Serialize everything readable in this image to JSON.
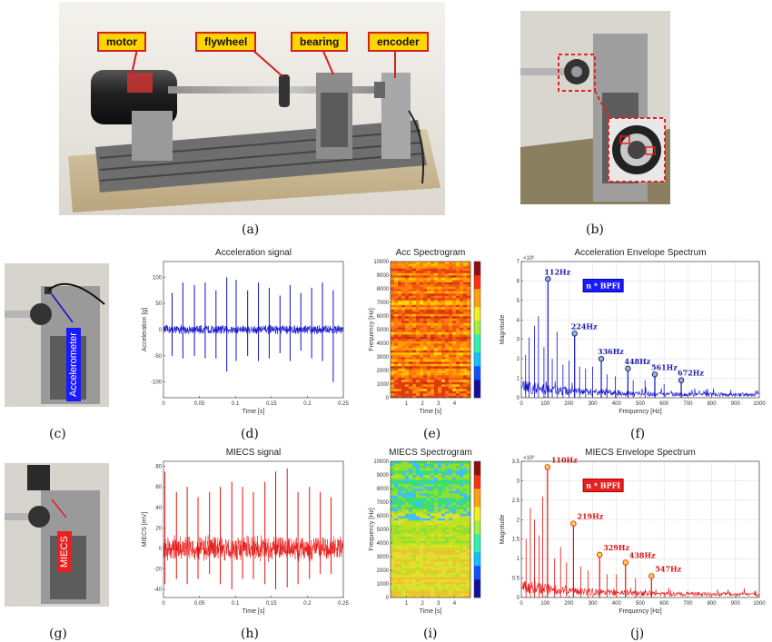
{
  "captions": {
    "a": "(a)",
    "b": "(b)",
    "c": "(c)",
    "d": "(d)",
    "e": "(e)",
    "f": "(f)",
    "g": "(g)",
    "h": "(h)",
    "i": "(i)",
    "j": "(j)"
  },
  "callouts": {
    "motor": "motor",
    "flywheel": "flywheel",
    "bearing": "bearing",
    "encoder": "encoder"
  },
  "sensors": {
    "accelerometer": "Accelerometer",
    "miecs": "MIECS"
  },
  "colors": {
    "acc": "#1010d0",
    "miecs": "#e81010",
    "callout_bg": "#ffd500",
    "callout_border": "#d32020"
  },
  "chart_data": [
    {
      "id": "d",
      "type": "line",
      "title": "Acceleration signal",
      "xlabel": "Time [s]",
      "ylabel": "Acceleration [g]",
      "xlim": [
        0,
        0.25
      ],
      "ylim": [
        -130,
        130
      ],
      "xticks": [
        0,
        0.05,
        0.1,
        0.15,
        0.2,
        0.25
      ],
      "xticklabels": [
        "0",
        "0.05",
        "0.1",
        "0.15",
        "0.2",
        "0.25"
      ],
      "yticks": [
        -100,
        -50,
        0,
        50,
        100
      ],
      "yticklabels": [
        "-100",
        "-50",
        "0",
        "50",
        "100"
      ],
      "noise": 8,
      "spikes": [
        [
          0.012,
          70,
          -50
        ],
        [
          0.027,
          90,
          -55
        ],
        [
          0.043,
          85,
          -50
        ],
        [
          0.058,
          90,
          -55
        ],
        [
          0.073,
          75,
          -55
        ],
        [
          0.088,
          100,
          -80
        ],
        [
          0.101,
          95,
          -60
        ],
        [
          0.117,
          75,
          -50
        ],
        [
          0.132,
          90,
          -60
        ],
        [
          0.147,
          80,
          -55
        ],
        [
          0.162,
          65,
          -45
        ],
        [
          0.176,
          85,
          -60
        ],
        [
          0.191,
          70,
          -40
        ],
        [
          0.206,
          80,
          -55
        ],
        [
          0.221,
          90,
          -60
        ],
        [
          0.236,
          75,
          -100
        ]
      ]
    },
    {
      "id": "e",
      "type": "heatmap",
      "title": "Acc Spectrogram",
      "xlabel": "Time [s]",
      "ylabel": "Frequency [Hz]",
      "xlim": [
        0,
        5
      ],
      "ylim": [
        0,
        10000
      ],
      "xticks": [
        1,
        2,
        3,
        4
      ],
      "xticklabels": [
        "1",
        "2",
        "3",
        "4"
      ],
      "yticks": [
        0,
        1000,
        2000,
        3000,
        4000,
        5000,
        6000,
        7000,
        8000,
        9000,
        10000
      ],
      "yticklabels": [
        "0",
        "1000",
        "2000",
        "3000",
        "4000",
        "5000",
        "6000",
        "7000",
        "8000",
        "9000",
        "10000"
      ],
      "scheme": "hot"
    },
    {
      "id": "f",
      "type": "line",
      "title": "Acceleration Envelope Spectrum",
      "xlabel": "Frequency [Hz]",
      "ylabel": "Magnitude",
      "xlim": [
        0,
        1000
      ],
      "ylim": [
        0,
        7
      ],
      "yexponent": "×10⁶",
      "xticks": [
        0,
        100,
        200,
        300,
        400,
        500,
        600,
        700,
        800,
        900,
        1000
      ],
      "xticklabels": [
        "0",
        "100",
        "200",
        "300",
        "400",
        "500",
        "600",
        "700",
        "800",
        "900",
        "1000"
      ],
      "yticks": [
        0,
        1,
        2,
        3,
        4,
        5,
        6,
        7
      ],
      "yticklabels": [
        "0",
        "1",
        "2",
        "3",
        "4",
        "5",
        "6",
        "7"
      ],
      "peaks": [
        [
          112,
          6.1
        ],
        [
          224,
          3.3
        ],
        [
          336,
          2.0
        ],
        [
          448,
          1.5
        ],
        [
          561,
          1.2
        ],
        [
          672,
          0.9
        ]
      ],
      "peak_labels": [
        "112Hz",
        "224Hz",
        "336Hz",
        "448Hz",
        "561Hz",
        "672Hz"
      ],
      "extra": [
        [
          18,
          2.2
        ],
        [
          33,
          3.1
        ],
        [
          55,
          3.7
        ],
        [
          72,
          4.2
        ],
        [
          95,
          2.6
        ],
        [
          130,
          2.0
        ],
        [
          150,
          3.4
        ],
        [
          175,
          1.7
        ],
        [
          200,
          1.9
        ],
        [
          245,
          1.6
        ],
        [
          270,
          1.5
        ],
        [
          300,
          1.6
        ],
        [
          360,
          1.2
        ],
        [
          395,
          1.1
        ],
        [
          470,
          0.9
        ],
        [
          520,
          0.9
        ],
        [
          600,
          0.7
        ]
      ],
      "legend": "n * BPFI"
    },
    {
      "id": "h",
      "type": "line",
      "title": "MIECS signal",
      "xlabel": "Time [s]",
      "ylabel": "MIECS [mV]",
      "xlim": [
        0,
        0.25
      ],
      "ylim": [
        -48,
        85
      ],
      "xticks": [
        0,
        0.05,
        0.1,
        0.15,
        0.2,
        0.25
      ],
      "xticklabels": [
        "0",
        "0.05",
        "0.1",
        "0.15",
        "0.2",
        "0.25"
      ],
      "yticks": [
        -40,
        -20,
        0,
        20,
        40,
        60,
        80
      ],
      "yticklabels": [
        "-40",
        "-20",
        "0",
        "20",
        "40",
        "60",
        "80"
      ],
      "noise": 11,
      "spikes": [
        [
          0.002,
          75,
          -35
        ],
        [
          0.018,
          55,
          -30
        ],
        [
          0.033,
          60,
          -35
        ],
        [
          0.048,
          50,
          -30
        ],
        [
          0.064,
          55,
          -25
        ],
        [
          0.079,
          60,
          -35
        ],
        [
          0.095,
          65,
          -40
        ],
        [
          0.11,
          60,
          -30
        ],
        [
          0.125,
          55,
          -30
        ],
        [
          0.141,
          65,
          -35
        ],
        [
          0.156,
          75,
          -40
        ],
        [
          0.172,
          78,
          -38
        ],
        [
          0.187,
          55,
          -35
        ],
        [
          0.203,
          60,
          -30
        ],
        [
          0.218,
          55,
          -25
        ],
        [
          0.233,
          50,
          -25
        ]
      ]
    },
    {
      "id": "i",
      "type": "heatmap",
      "title": "MIECS Spectrogram",
      "xlabel": "Time [s]",
      "ylabel": "Frequency [Hz]",
      "xlim": [
        0,
        5
      ],
      "ylim": [
        0,
        10000
      ],
      "xticks": [
        1,
        2,
        3,
        4
      ],
      "xticklabels": [
        "1",
        "2",
        "3",
        "4"
      ],
      "yticks": [
        0,
        1000,
        2000,
        3000,
        4000,
        5000,
        6000,
        7000,
        8000,
        9000,
        10000
      ],
      "yticklabels": [
        "0",
        "1000",
        "2000",
        "3000",
        "4000",
        "5000",
        "6000",
        "7000",
        "8000",
        "9000",
        "10000"
      ],
      "scheme": "cool"
    },
    {
      "id": "j",
      "type": "line",
      "title": "MIECS Envelope Spectrum",
      "xlabel": "Frequency [Hz]",
      "ylabel": "Magnitude",
      "xlim": [
        0,
        1000
      ],
      "ylim": [
        0,
        3.5
      ],
      "yexponent": "×10⁶",
      "xticks": [
        0,
        100,
        200,
        300,
        400,
        500,
        600,
        700,
        800,
        900,
        1000
      ],
      "xticklabels": [
        "0",
        "100",
        "200",
        "300",
        "400",
        "500",
        "600",
        "700",
        "800",
        "900",
        "1000"
      ],
      "yticks": [
        0,
        0.5,
        1,
        1.5,
        2,
        2.5,
        3,
        3.5
      ],
      "yticklabels": [
        "0",
        "0.5",
        "1",
        "1.5",
        "2",
        "2.5",
        "3",
        "3.5"
      ],
      "peaks": [
        [
          110,
          3.35
        ],
        [
          219,
          1.9
        ],
        [
          329,
          1.1
        ],
        [
          438,
          0.9
        ],
        [
          547,
          0.55
        ]
      ],
      "peak_labels": [
        "110Hz",
        "219Hz",
        "329Hz",
        "438Hz",
        "547Hz"
      ],
      "extra": [
        [
          20,
          1.5
        ],
        [
          38,
          2.3
        ],
        [
          55,
          2.0
        ],
        [
          75,
          1.6
        ],
        [
          90,
          2.6
        ],
        [
          140,
          1.0
        ],
        [
          165,
          1.3
        ],
        [
          190,
          0.9
        ],
        [
          250,
          0.8
        ],
        [
          280,
          0.7
        ],
        [
          360,
          0.6
        ],
        [
          400,
          0.6
        ],
        [
          480,
          0.5
        ]
      ],
      "legend": "n * BPFI"
    }
  ]
}
